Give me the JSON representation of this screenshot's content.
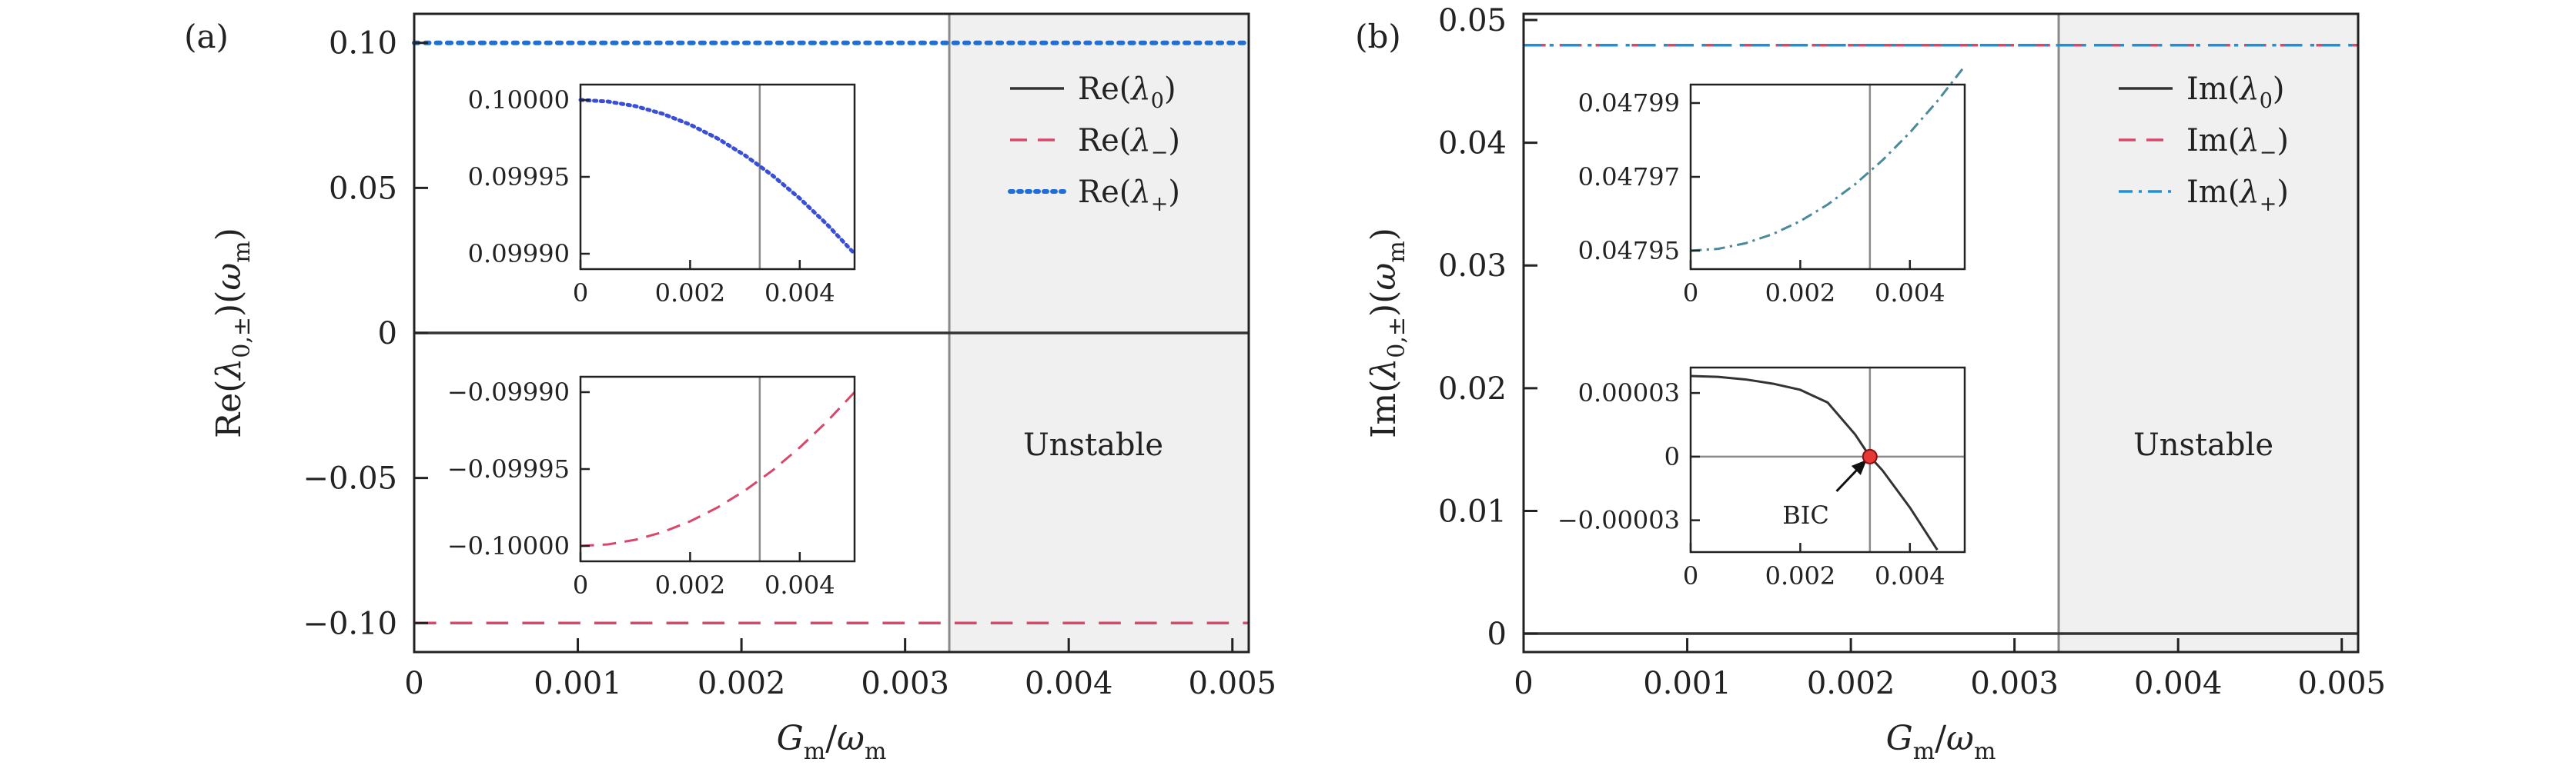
{
  "chart_data": [
    {
      "id": "a",
      "panel_label": "(a)",
      "type": "line",
      "ylabel": "Re(λ0,±)(ωm)",
      "xlabel": "Gm/ωm",
      "xlim": [
        0,
        0.0051
      ],
      "ylim": [
        -0.11,
        0.11
      ],
      "xticks": [
        0,
        0.001,
        0.002,
        0.003,
        0.004,
        0.005
      ],
      "xtick_labels": [
        "0",
        "0.001",
        "0.002",
        "0.003",
        "0.004",
        "0.005"
      ],
      "yticks": [
        -0.1,
        -0.05,
        0,
        0.05,
        0.1
      ],
      "ytick_labels": [
        "−0.10",
        "−0.05",
        "0",
        "0.05",
        "0.10"
      ],
      "threshold_x": 0.00327,
      "unstable_label": "Unstable",
      "legend_position": "top-right",
      "series": [
        {
          "name": "Re(λ0)",
          "style": "solid",
          "color": "#333333",
          "x": [
            0,
            0.0051
          ],
          "y": [
            0,
            0
          ]
        },
        {
          "name": "Re(λ−)",
          "style": "dashed",
          "color": "#d9476a",
          "x": [
            0,
            0.0051
          ],
          "y": [
            -0.1,
            -0.1
          ]
        },
        {
          "name": "Re(λ+)",
          "style": "dotted",
          "color": "#1f6fd8",
          "x": [
            0,
            0.0051
          ],
          "y": [
            0.1,
            0.1
          ]
        }
      ],
      "insets": [
        {
          "id": "a-top",
          "xlim": [
            0,
            0.005
          ],
          "ylim": [
            0.09989,
            0.10001
          ],
          "xticks": [
            0,
            0.002,
            0.004
          ],
          "xtick_labels": [
            "0",
            "0.002",
            "0.004"
          ],
          "yticks": [
            0.0999,
            0.09995,
            0.1
          ],
          "ytick_labels": [
            "0.09990",
            "0.09995",
            "0.10000"
          ],
          "vline_x": 0.00327,
          "series": [
            {
              "name": "Re(λ+)",
              "style": "dotted",
              "color": "#3a4fd8",
              "x": [
                0,
                0.0005,
                0.001,
                0.0015,
                0.002,
                0.0025,
                0.003,
                0.0035,
                0.004,
                0.0045,
                0.005
              ],
              "y": [
                0.1,
                0.099999,
                0.099996,
                0.099991,
                0.099984,
                0.099975,
                0.099964,
                0.099951,
                0.099936,
                0.099919,
                0.0999
              ]
            }
          ]
        },
        {
          "id": "a-bottom",
          "xlim": [
            0,
            0.005
          ],
          "ylim": [
            -0.10001,
            -0.09989
          ],
          "xticks": [
            0,
            0.002,
            0.004
          ],
          "xtick_labels": [
            "0",
            "0.002",
            "0.004"
          ],
          "yticks": [
            -0.1,
            -0.09995,
            -0.0999
          ],
          "ytick_labels": [
            "−0.10000",
            "−0.09995",
            "−0.09990"
          ],
          "vline_x": 0.00327,
          "series": [
            {
              "name": "Re(λ−)",
              "style": "dashed",
              "color": "#d9476a",
              "x": [
                0,
                0.0005,
                0.001,
                0.0015,
                0.002,
                0.0025,
                0.003,
                0.0035,
                0.004,
                0.0045,
                0.005
              ],
              "y": [
                -0.1,
                -0.099999,
                -0.099996,
                -0.099991,
                -0.099984,
                -0.099975,
                -0.099964,
                -0.099951,
                -0.099936,
                -0.099919,
                -0.0999
              ]
            }
          ]
        }
      ]
    },
    {
      "id": "b",
      "panel_label": "(b)",
      "type": "line",
      "ylabel": "Im(λ0,±)(ωm)",
      "xlabel": "Gm/ωm",
      "xlim": [
        0,
        0.0051
      ],
      "ylim": [
        -0.0015,
        0.0505
      ],
      "xticks": [
        0,
        0.001,
        0.002,
        0.003,
        0.004,
        0.005
      ],
      "xtick_labels": [
        "0",
        "0.001",
        "0.002",
        "0.003",
        "0.004",
        "0.005"
      ],
      "yticks": [
        0,
        0.01,
        0.02,
        0.03,
        0.04,
        0.05
      ],
      "ytick_labels": [
        "0",
        "0.01",
        "0.02",
        "0.03",
        "0.04",
        "0.05"
      ],
      "threshold_x": 0.00327,
      "unstable_label": "Unstable",
      "legend_position": "top-right",
      "series": [
        {
          "name": "Im(λ0)",
          "style": "solid",
          "color": "#333333",
          "x": [
            0,
            0.0051
          ],
          "y": [
            0,
            0
          ]
        },
        {
          "name": "Im(λ−)",
          "style": "dashed",
          "color": "#d9476a",
          "x": [
            0,
            0.0051
          ],
          "y": [
            0.04795,
            0.04795
          ]
        },
        {
          "name": "Im(λ+)",
          "style": "dashdot",
          "color": "#1f8fd8",
          "x": [
            0,
            0.0051
          ],
          "y": [
            0.04795,
            0.04795
          ]
        }
      ],
      "insets": [
        {
          "id": "b-top",
          "xlim": [
            0,
            0.005
          ],
          "ylim": [
            0.047945,
            0.047995
          ],
          "xticks": [
            0,
            0.002,
            0.004
          ],
          "xtick_labels": [
            "0",
            "0.002",
            "0.004"
          ],
          "yticks": [
            0.04795,
            0.04797,
            0.04799
          ],
          "ytick_labels": [
            "0.04795",
            "0.04797",
            "0.04799"
          ],
          "vline_x": 0.00327,
          "series": [
            {
              "name": "Im(λ±)",
              "style": "dashdot",
              "color": "#4b8a9a",
              "x": [
                0,
                0.0005,
                0.001,
                0.0015,
                0.002,
                0.0025,
                0.003,
                0.0035,
                0.004,
                0.0045,
                0.005
              ],
              "y": [
                0.04795,
                0.0479505,
                0.047952,
                0.0479545,
                0.047958,
                0.0479625,
                0.047968,
                0.0479745,
                0.047982,
                0.0479905,
                0.048
              ]
            }
          ]
        },
        {
          "id": "b-bottom",
          "xlim": [
            0,
            0.005
          ],
          "ylim": [
            -4.5e-05,
            4.2e-05
          ],
          "xticks": [
            0,
            0.002,
            0.004
          ],
          "xtick_labels": [
            "0",
            "0.002",
            "0.004"
          ],
          "yticks": [
            -3e-05,
            0,
            3e-05
          ],
          "ytick_labels": [
            "−0.00003",
            "0",
            "0.00003"
          ],
          "vline_x": 0.00327,
          "hline_y": 0,
          "annotation": {
            "text": "BIC",
            "x": 0.00327,
            "y": 0
          },
          "series": [
            {
              "name": "Im(λ0)",
              "style": "solid",
              "color": "#333333",
              "x": [
                0,
                0.0005,
                0.001,
                0.0015,
                0.002,
                0.0025,
                0.003,
                0.00327,
                0.0035,
                0.004,
                0.0045
              ],
              "y": [
                3.8e-05,
                3.76e-05,
                3.64e-05,
                3.44e-05,
                3.15e-05,
                2.55e-05,
                1.05e-05,
                0,
                -6.5e-06,
                -2.4e-05,
                -4.4e-05
              ]
            }
          ]
        }
      ]
    }
  ]
}
